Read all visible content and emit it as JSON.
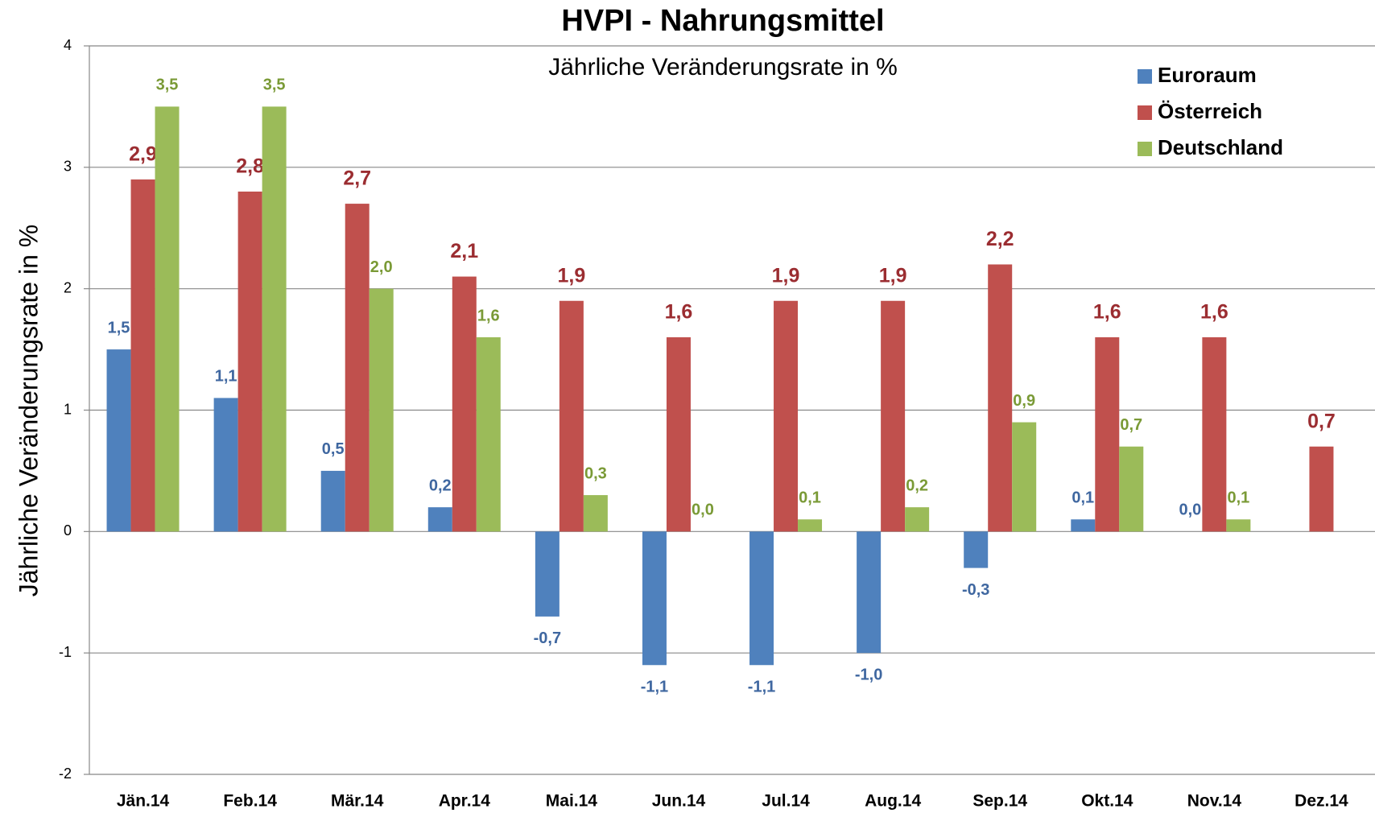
{
  "chart_data": {
    "type": "bar",
    "title": "HVPI - Nahrungsmittel",
    "subtitle": "Jährliche Veränderungsrate in %",
    "y_label": "Jährliche Veränderungsrate in %",
    "categories": [
      "Jän.14",
      "Feb.14",
      "Mär.14",
      "Apr.14",
      "Mai.14",
      "Jun.14",
      "Jul.14",
      "Aug.14",
      "Sep.14",
      "Okt.14",
      "Nov.14",
      "Dez.14"
    ],
    "series": [
      {
        "name": "Euroraum",
        "color": "#4f81bd",
        "label_color": "#3f67a0",
        "values": [
          1.5,
          1.1,
          0.5,
          0.2,
          -0.7,
          -1.1,
          -1.1,
          -1.0,
          -0.3,
          0.1,
          0.0,
          null
        ],
        "value_labels": [
          "1,5",
          "1,1",
          "0,5",
          "0,2",
          "-0,7",
          "-1,1",
          "-1,1",
          "-1,0",
          "-0,3",
          "0,1",
          "0,0",
          null
        ]
      },
      {
        "name": "Österreich",
        "color": "#c0504d",
        "label_color": "#9b2d31",
        "values": [
          2.9,
          2.8,
          2.7,
          2.1,
          1.9,
          1.6,
          1.9,
          1.9,
          2.2,
          1.6,
          1.6,
          0.7
        ],
        "value_labels": [
          "2,9",
          "2,8",
          "2,7",
          "2,1",
          "1,9",
          "1,6",
          "1,9",
          "1,9",
          "2,2",
          "1,6",
          "1,6",
          "0,7"
        ]
      },
      {
        "name": "Deutschland",
        "color": "#9bbb59",
        "label_color": "#7a9a36",
        "values": [
          3.5,
          3.5,
          2.0,
          1.6,
          0.3,
          0.0,
          0.1,
          0.2,
          0.9,
          0.7,
          0.1,
          null
        ],
        "value_labels": [
          "3,5",
          "3,5",
          "2,0",
          "1,6",
          "0,3",
          "0,0",
          "0,1",
          "0,2",
          "0,9",
          "0,7",
          "0,1",
          null
        ]
      }
    ],
    "ylim": [
      -2,
      4
    ],
    "yticks": [
      -2,
      -1,
      0,
      1,
      2,
      3,
      4
    ],
    "grid": true,
    "legend": "top-right"
  }
}
